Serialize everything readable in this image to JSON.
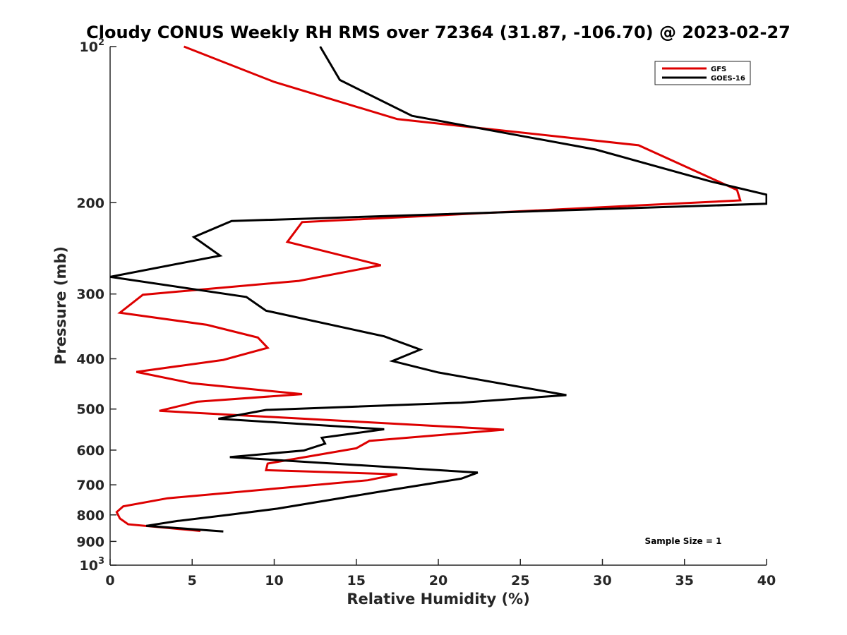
{
  "chart_data": {
    "type": "line",
    "title": "Cloudy CONUS Weekly RH RMS over 72364 (31.87, -106.70) @ 2023-02-27",
    "xlabel": "Relative Humidity (%)",
    "ylabel": "Pressure (mb)",
    "xlim": [
      0,
      40
    ],
    "ylim": [
      100,
      1000
    ],
    "y_scale": "log",
    "y_reversed": true,
    "x_ticks": [
      "0",
      "5",
      "10",
      "15",
      "20",
      "25",
      "30",
      "35",
      "40"
    ],
    "y_ticks": [
      {
        "value": 100,
        "label": "10",
        "sup": "2"
      },
      {
        "value": 200,
        "label": "200"
      },
      {
        "value": 300,
        "label": "300"
      },
      {
        "value": 400,
        "label": "400"
      },
      {
        "value": 500,
        "label": "500"
      },
      {
        "value": 600,
        "label": "600"
      },
      {
        "value": 700,
        "label": "700"
      },
      {
        "value": 800,
        "label": "800"
      },
      {
        "value": 900,
        "label": "900"
      },
      {
        "value": 1000,
        "label": "10",
        "sup": "3"
      }
    ],
    "grid": false,
    "legend_position": "top-right",
    "annotation": "Sample Size = 1",
    "series": [
      {
        "name": "GFS",
        "color": "#dd0000",
        "points": [
          [
            4.5,
            100
          ],
          [
            10,
            117
          ],
          [
            17.5,
            138
          ],
          [
            32.2,
            155
          ],
          [
            38.2,
            189
          ],
          [
            38.4,
            198
          ],
          [
            11.7,
            218
          ],
          [
            10.8,
            238
          ],
          [
            16.5,
            264
          ],
          [
            11.5,
            283
          ],
          [
            2,
            301
          ],
          [
            0.6,
            326
          ],
          [
            5.9,
            344
          ],
          [
            9,
            364
          ],
          [
            9.6,
            381
          ],
          [
            6.9,
            402
          ],
          [
            1.6,
            424
          ],
          [
            5,
            446
          ],
          [
            11.7,
            468
          ],
          [
            5.3,
            484
          ],
          [
            3,
            504
          ],
          [
            24,
            548
          ],
          [
            15.8,
            576
          ],
          [
            15,
            595
          ],
          [
            9.6,
            637
          ],
          [
            9.5,
            656
          ],
          [
            17.5,
            668
          ],
          [
            15.7,
            686
          ],
          [
            3.5,
            743
          ],
          [
            0.8,
            770
          ],
          [
            0.4,
            790
          ],
          [
            0.6,
            813
          ],
          [
            1.1,
            834
          ],
          [
            5.5,
            859
          ]
        ]
      },
      {
        "name": "GOES-16",
        "color": "#000000",
        "points": [
          [
            12.8,
            100
          ],
          [
            14,
            116
          ],
          [
            18.4,
            136
          ],
          [
            29.6,
            158
          ],
          [
            36.6,
            182
          ],
          [
            40,
            193
          ],
          [
            40,
            201
          ],
          [
            7.4,
            217
          ],
          [
            5.1,
            233
          ],
          [
            6.7,
            253
          ],
          [
            0,
            278
          ],
          [
            8.3,
            304
          ],
          [
            9.5,
            323
          ],
          [
            16.7,
            362
          ],
          [
            18.9,
            384
          ],
          [
            17.2,
            404
          ],
          [
            20,
            425
          ],
          [
            27.8,
            470
          ],
          [
            21.4,
            486
          ],
          [
            9.5,
            502
          ],
          [
            6.6,
            522
          ],
          [
            16.7,
            547
          ],
          [
            12.9,
            568
          ],
          [
            13.1,
            583
          ],
          [
            11.8,
            601
          ],
          [
            7.3,
            619
          ],
          [
            22.4,
            663
          ],
          [
            21.4,
            681
          ],
          [
            16.5,
            721
          ],
          [
            10.2,
            778
          ],
          [
            7.2,
            800
          ],
          [
            4.1,
            822
          ],
          [
            2.2,
            840
          ],
          [
            6.9,
            861
          ]
        ]
      }
    ]
  }
}
